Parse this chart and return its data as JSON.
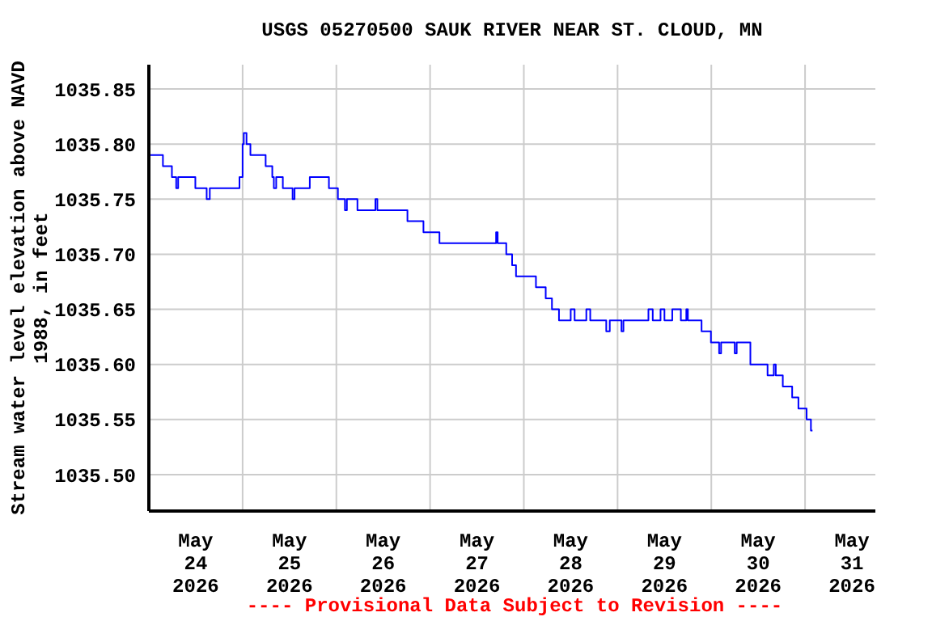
{
  "chart_data": {
    "type": "step",
    "title": "USGS 05270500 SAUK RIVER NEAR ST. CLOUD, MN",
    "ylabel": "Stream water level elevation above NAVD 1988, in feet",
    "annotations": [
      "---- Provisional Data Subject to Revision ----"
    ],
    "x": [
      "2026-05-24T00:18",
      "2026-05-24T03:36",
      "2026-05-24T05:54",
      "2026-05-24T07:00",
      "2026-05-24T07:30",
      "2026-05-24T11:54",
      "2026-05-24T14:48",
      "2026-05-24T15:36",
      "2026-05-24T23:12",
      "2026-05-25T00:00",
      "2026-05-25T00:18",
      "2026-05-25T01:00",
      "2026-05-25T02:00",
      "2026-05-25T05:54",
      "2026-05-25T07:36",
      "2026-05-25T08:00",
      "2026-05-25T08:36",
      "2026-05-25T10:18",
      "2026-05-25T12:48",
      "2026-05-25T13:18",
      "2026-05-25T17:12",
      "2026-05-25T22:06",
      "2026-05-26T00:24",
      "2026-05-26T02:12",
      "2026-05-26T02:42",
      "2026-05-26T05:24",
      "2026-05-26T10:00",
      "2026-05-26T10:30",
      "2026-05-26T18:12",
      "2026-05-26T22:18",
      "2026-05-27T02:24",
      "2026-05-27T16:54",
      "2026-05-27T17:18",
      "2026-05-27T19:30",
      "2026-05-27T21:00",
      "2026-05-27T22:00",
      "2026-05-28T03:06",
      "2026-05-28T05:36",
      "2026-05-28T07:12",
      "2026-05-28T09:00",
      "2026-05-28T12:00",
      "2026-05-28T13:00",
      "2026-05-28T16:00",
      "2026-05-28T17:00",
      "2026-05-28T21:06",
      "2026-05-28T22:00",
      "2026-05-29T01:00",
      "2026-05-29T01:30",
      "2026-05-29T07:54",
      "2026-05-29T09:00",
      "2026-05-29T11:00",
      "2026-05-29T12:00",
      "2026-05-29T14:00",
      "2026-05-29T16:12",
      "2026-05-29T17:36",
      "2026-05-29T18:00",
      "2026-05-29T21:30",
      "2026-05-29T23:54",
      "2026-05-30T02:00",
      "2026-05-30T02:30",
      "2026-05-30T06:00",
      "2026-05-30T06:30",
      "2026-05-30T10:00",
      "2026-05-30T14:24",
      "2026-05-30T16:00",
      "2026-05-30T16:30",
      "2026-05-30T18:18",
      "2026-05-30T20:42",
      "2026-05-30T22:18",
      "2026-05-31T00:24",
      "2026-05-31T01:30",
      "2026-05-31T01:54"
    ],
    "series": [
      {
        "color": "#0000ff",
        "values": [
          1035.79,
          1035.78,
          1035.77,
          1035.76,
          1035.77,
          1035.76,
          1035.75,
          1035.76,
          1035.77,
          1035.8,
          1035.81,
          1035.8,
          1035.79,
          1035.78,
          1035.77,
          1035.76,
          1035.77,
          1035.76,
          1035.75,
          1035.76,
          1035.77,
          1035.76,
          1035.75,
          1035.74,
          1035.75,
          1035.74,
          1035.75,
          1035.74,
          1035.73,
          1035.72,
          1035.71,
          1035.72,
          1035.71,
          1035.7,
          1035.69,
          1035.68,
          1035.67,
          1035.66,
          1035.65,
          1035.64,
          1035.65,
          1035.64,
          1035.65,
          1035.64,
          1035.63,
          1035.64,
          1035.63,
          1035.64,
          1035.65,
          1035.64,
          1035.65,
          1035.64,
          1035.65,
          1035.64,
          1035.65,
          1035.64,
          1035.63,
          1035.62,
          1035.61,
          1035.62,
          1035.61,
          1035.62,
          1035.6,
          1035.59,
          1035.6,
          1035.59,
          1035.58,
          1035.57,
          1035.56,
          1035.55,
          1035.54,
          1035.54
        ]
      }
    ],
    "xlim": [
      "2026-05-24T00:00",
      "2026-05-31T18:00"
    ],
    "xticks": [
      {
        "value": "2026-05-24T00:00",
        "label": null
      },
      {
        "value": "2026-05-24T12:00",
        "label": "May\n24\n2026"
      },
      {
        "value": "2026-05-25T00:00",
        "label": null
      },
      {
        "value": "2026-05-25T12:00",
        "label": "May\n25\n2026"
      },
      {
        "value": "2026-05-26T00:00",
        "label": null
      },
      {
        "value": "2026-05-26T12:00",
        "label": "May\n26\n2026"
      },
      {
        "value": "2026-05-27T00:00",
        "label": null
      },
      {
        "value": "2026-05-27T12:00",
        "label": "May\n27\n2026"
      },
      {
        "value": "2026-05-28T00:00",
        "label": null
      },
      {
        "value": "2026-05-28T12:00",
        "label": "May\n28\n2026"
      },
      {
        "value": "2026-05-29T00:00",
        "label": null
      },
      {
        "value": "2026-05-29T12:00",
        "label": "May\n29\n2026"
      },
      {
        "value": "2026-05-30T00:00",
        "label": null
      },
      {
        "value": "2026-05-30T12:00",
        "label": "May\n30\n2026"
      },
      {
        "value": "2026-05-31T00:00",
        "label": null
      },
      {
        "value": "2026-05-31T12:00",
        "label": "May\n31\n2026"
      }
    ],
    "ylim": [
      1035.467,
      1035.872
    ],
    "yticks": [
      {
        "value": 1035.5,
        "label": "1035.50"
      },
      1035.55,
      {
        "value": 1035.6,
        "label": "1035.60"
      },
      1035.65,
      {
        "value": 1035.7,
        "label": "1035.70"
      },
      1035.75,
      {
        "value": 1035.8,
        "label": "1035.80"
      },
      1035.85
    ],
    "grid": true,
    "marker": "none",
    "line_style": "solid"
  }
}
